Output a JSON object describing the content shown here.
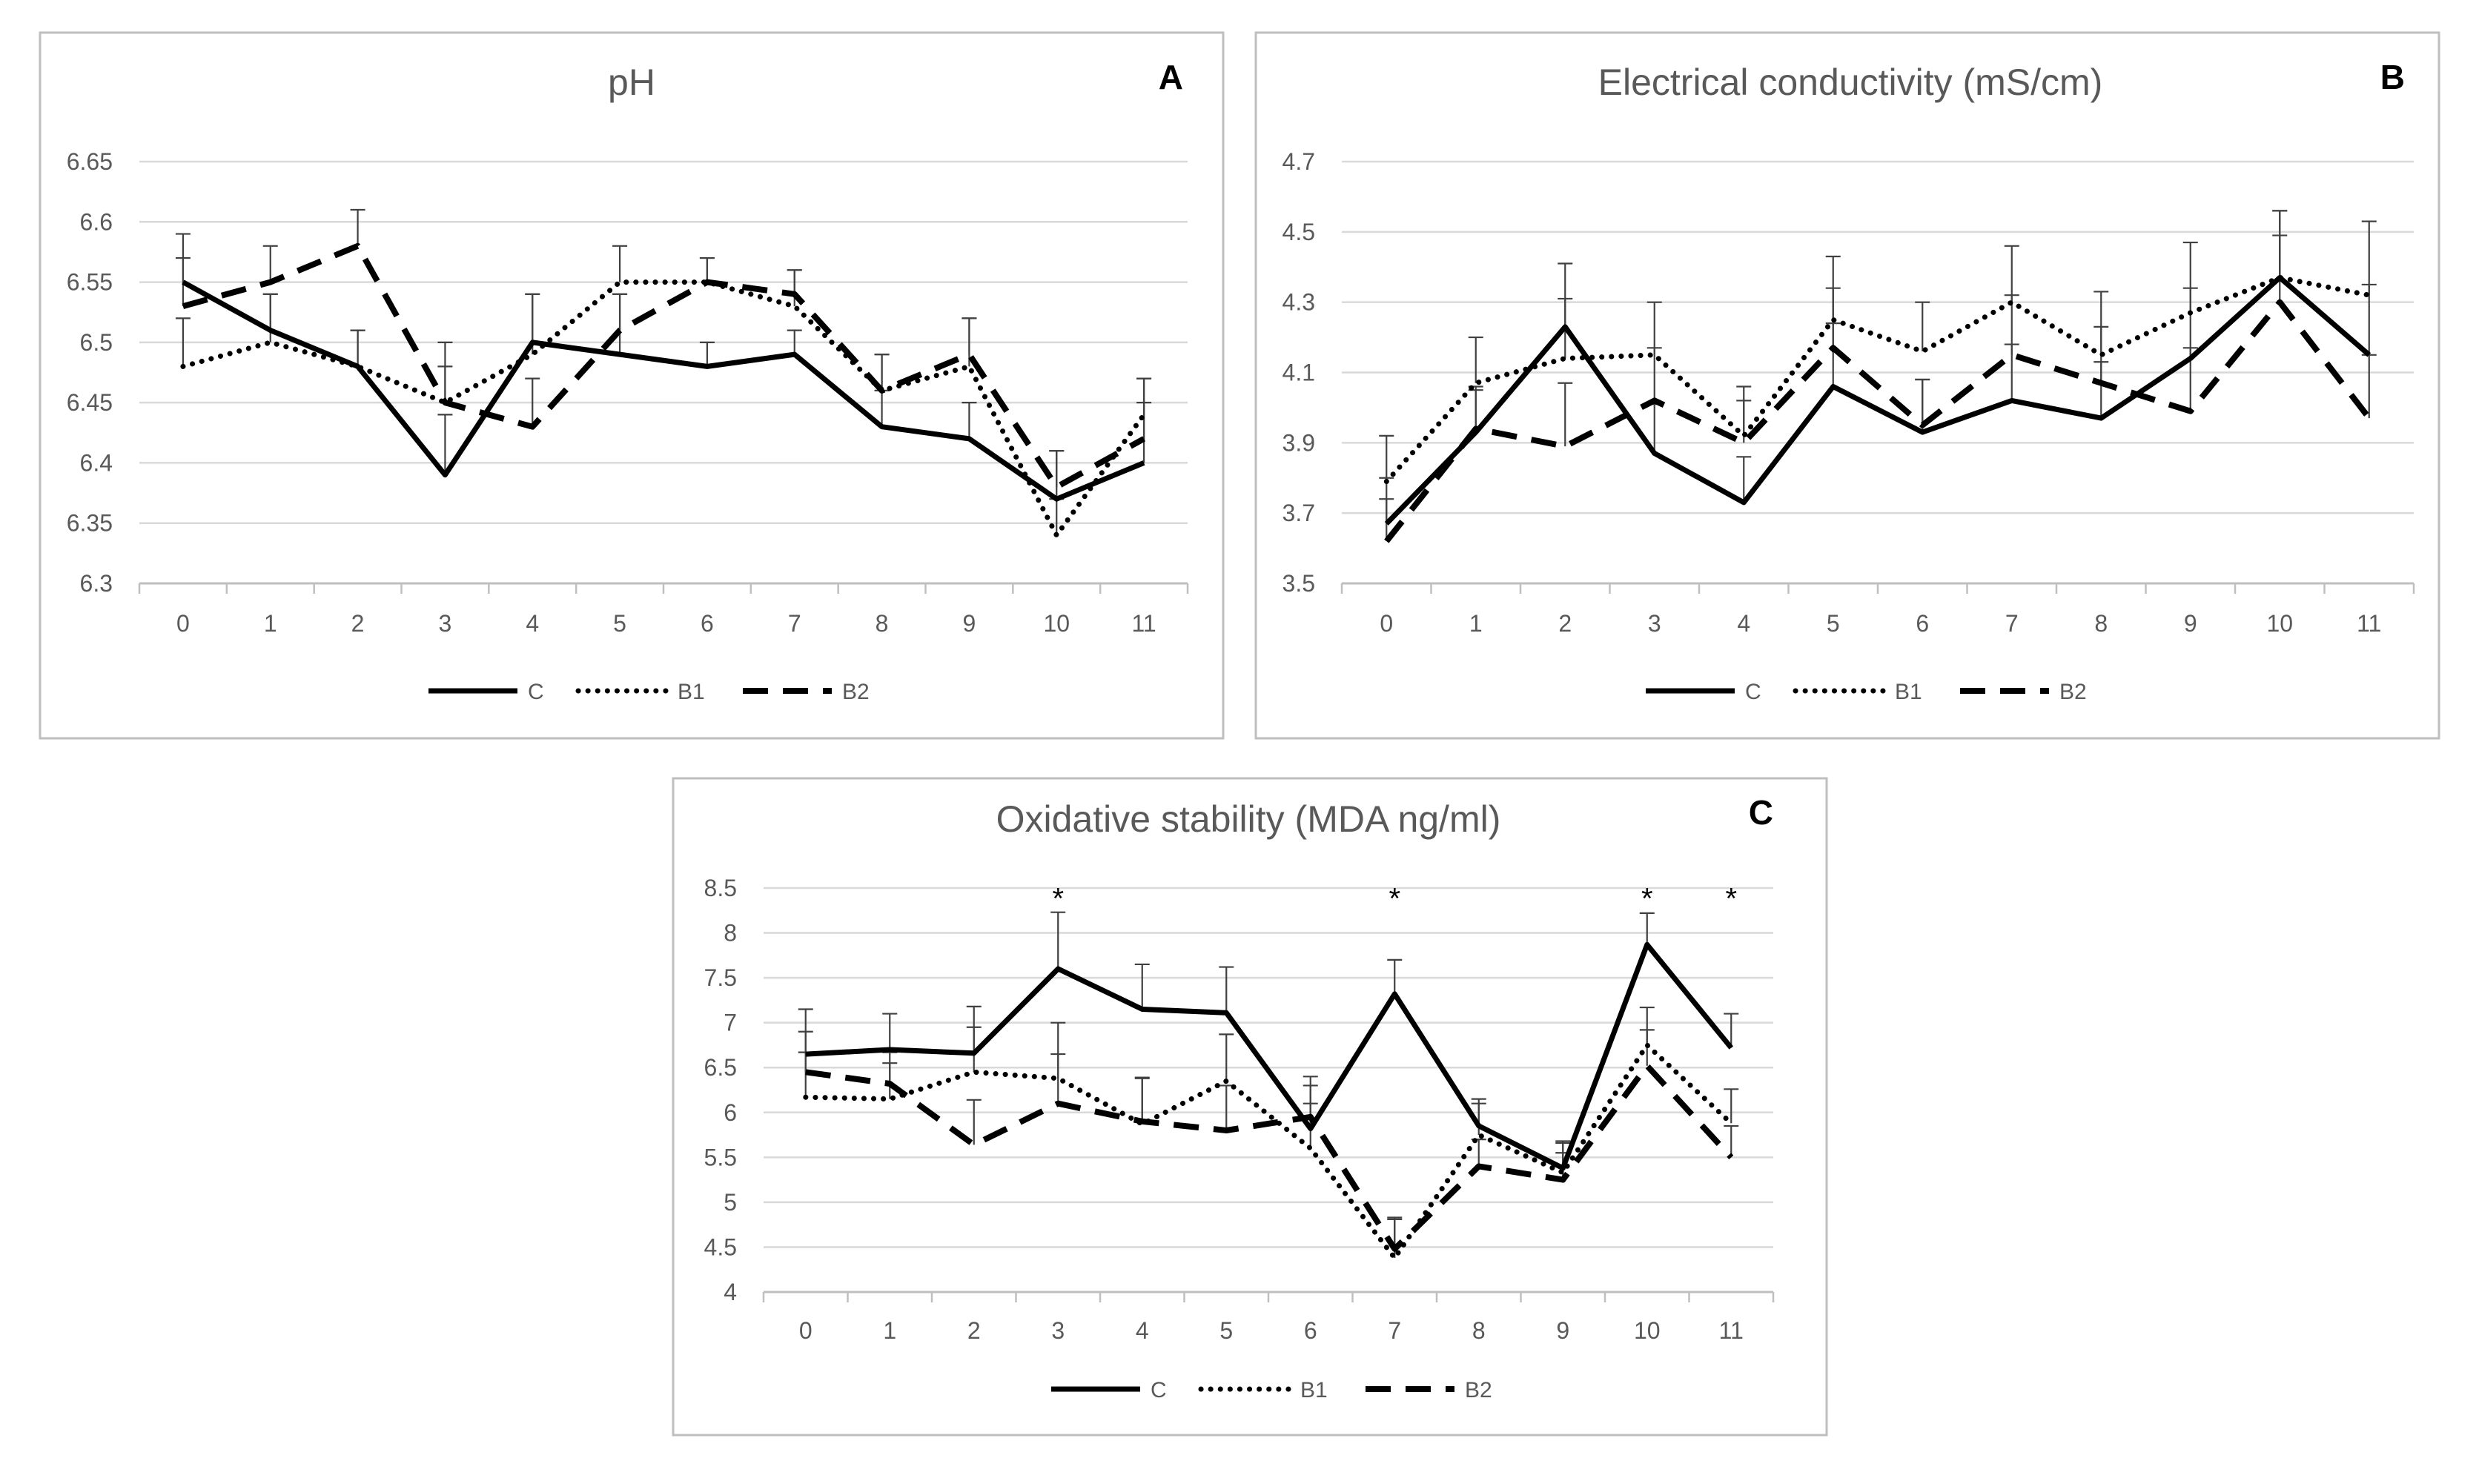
{
  "chart_data": [
    {
      "type": "line",
      "panel_label": "A",
      "title": "pH",
      "categories": [
        "0",
        "1",
        "2",
        "3",
        "4",
        "5",
        "6",
        "7",
        "8",
        "9",
        "10",
        "11"
      ],
      "ylim": [
        6.3,
        6.65
      ],
      "yticks": [
        "6.3",
        "6.35",
        "6.4",
        "6.45",
        "6.5",
        "6.55",
        "6.6",
        "6.65"
      ],
      "grid": true,
      "legend_position": "bottom",
      "series": [
        {
          "name": "C",
          "style": "solid",
          "values": [
            6.55,
            6.51,
            6.48,
            6.39,
            6.5,
            6.49,
            6.48,
            6.49,
            6.43,
            6.42,
            6.37,
            6.4
          ],
          "errors": [
            0.04,
            0.03,
            0.03,
            0.05,
            0.04,
            0.05,
            0.02,
            0.02,
            0.03,
            0.03,
            0.04,
            0.07
          ]
        },
        {
          "name": "B1",
          "style": "dotted",
          "values": [
            6.48,
            6.5,
            6.48,
            6.45,
            6.49,
            6.55,
            6.55,
            6.53,
            6.46,
            6.48,
            6.34,
            6.44
          ],
          "errors": [
            0.04,
            0.04,
            0.03,
            0.05,
            0.05,
            0.03,
            0.02,
            0.03,
            0.03,
            0.04,
            0.03,
            0.03
          ]
        },
        {
          "name": "B2",
          "style": "dashed",
          "values": [
            6.53,
            6.55,
            6.58,
            6.45,
            6.43,
            6.51,
            6.55,
            6.54,
            6.46,
            6.49,
            6.38,
            6.42
          ],
          "errors": [
            0.04,
            0.03,
            0.03,
            0.03,
            0.04,
            0.03,
            0.02,
            0.02,
            0.03,
            0.03,
            0.03,
            0.03
          ]
        }
      ],
      "annotations": []
    },
    {
      "type": "line",
      "panel_label": "B",
      "title": "Electrical conductivity (mS/cm)",
      "categories": [
        "0",
        "1",
        "2",
        "3",
        "4",
        "5",
        "6",
        "7",
        "8",
        "9",
        "10",
        "11"
      ],
      "ylim": [
        3.5,
        4.7
      ],
      "yticks": [
        "3.5",
        "3.7",
        "3.9",
        "4.1",
        "4.3",
        "4.5",
        "4.7"
      ],
      "grid": true,
      "legend_position": "bottom",
      "series": [
        {
          "name": "C",
          "style": "solid",
          "values": [
            3.67,
            3.93,
            4.23,
            3.87,
            3.73,
            4.06,
            3.93,
            4.02,
            3.97,
            4.14,
            4.37,
            4.15
          ],
          "errors": [
            0.13,
            0.12,
            0.18,
            0.14,
            0.13,
            0.18,
            0.15,
            0.16,
            0.16,
            0.2,
            0.19,
            0.2
          ]
        },
        {
          "name": "B1",
          "style": "dotted",
          "values": [
            3.79,
            4.07,
            4.14,
            4.15,
            3.92,
            4.25,
            4.16,
            4.3,
            4.15,
            4.27,
            4.37,
            4.32
          ],
          "errors": [
            0.13,
            0.13,
            0.17,
            0.15,
            0.14,
            0.18,
            0.14,
            0.16,
            0.18,
            0.2,
            0.19,
            0.21
          ]
        },
        {
          "name": "B2",
          "style": "dashed",
          "values": [
            3.62,
            3.94,
            3.89,
            4.02,
            3.9,
            4.17,
            3.95,
            4.15,
            4.07,
            3.99,
            4.3,
            3.97
          ],
          "errors": [
            0.12,
            0.12,
            0.18,
            0.15,
            0.12,
            0.17,
            0.13,
            0.17,
            0.16,
            0.18,
            0.19,
            0.18
          ]
        }
      ],
      "annotations": []
    },
    {
      "type": "line",
      "panel_label": "C",
      "title": "Oxidative stability (MDA ng/ml)",
      "categories": [
        "0",
        "1",
        "2",
        "3",
        "4",
        "5",
        "6",
        "7",
        "8",
        "9",
        "10",
        "11"
      ],
      "ylim": [
        4,
        8.5
      ],
      "yticks": [
        "4",
        "4.5",
        "5",
        "5.5",
        "6",
        "6.5",
        "7",
        "7.5",
        "8",
        "8.5"
      ],
      "grid": true,
      "legend_position": "bottom",
      "series": [
        {
          "name": "C",
          "style": "solid",
          "values": [
            6.65,
            6.7,
            6.66,
            7.6,
            7.15,
            7.11,
            5.82,
            7.32,
            5.85,
            5.38,
            7.87,
            6.72
          ],
          "errors": [
            0.5,
            0.4,
            0.52,
            0.63,
            0.5,
            0.51,
            0.48,
            0.38,
            0.3,
            0.3,
            0.35,
            0.38
          ]
        },
        {
          "name": "B1",
          "style": "dotted",
          "values": [
            6.17,
            6.15,
            6.45,
            6.38,
            5.87,
            6.35,
            5.6,
            4.38,
            5.75,
            5.33,
            6.75,
            5.88
          ],
          "errors": [
            0.5,
            0.4,
            0.5,
            0.62,
            0.52,
            0.52,
            0.5,
            0.43,
            0.35,
            0.33,
            0.42,
            0.38
          ]
        },
        {
          "name": "B2",
          "style": "dashed",
          "values": [
            6.45,
            6.32,
            5.64,
            6.1,
            5.9,
            5.8,
            5.95,
            4.48,
            5.4,
            5.25,
            6.52,
            5.5
          ],
          "errors": [
            0.45,
            0.35,
            0.5,
            0.55,
            0.48,
            0.5,
            0.45,
            0.35,
            0.3,
            0.3,
            0.4,
            0.35
          ]
        }
      ],
      "annotations": [
        {
          "category_index": 3,
          "text": "*",
          "y_value": 8.42
        },
        {
          "category_index": 7,
          "text": "*",
          "y_value": 8.42
        },
        {
          "category_index": 10,
          "text": "*",
          "y_value": 8.42
        },
        {
          "category_index": 11,
          "text": "*",
          "y_value": 8.42
        }
      ]
    }
  ]
}
